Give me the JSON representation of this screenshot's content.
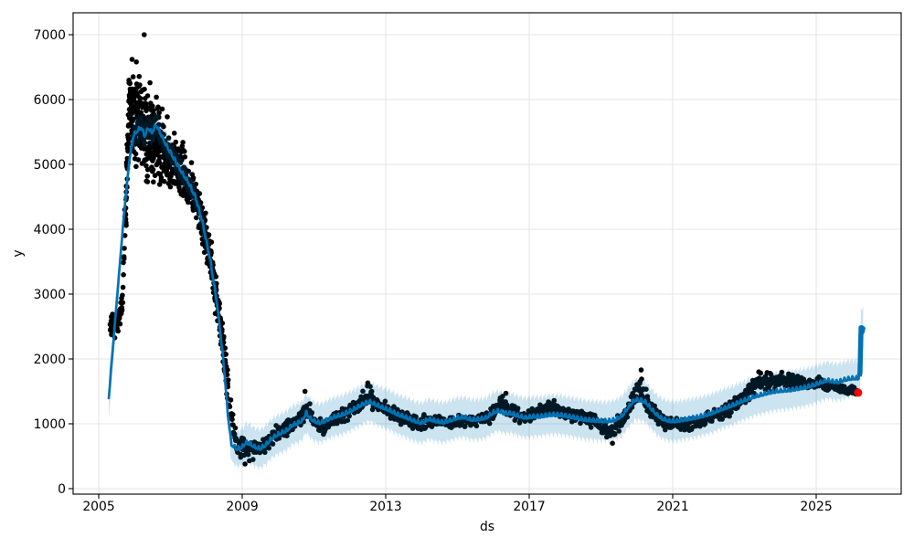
{
  "chart_data": {
    "type": "line",
    "title": "",
    "xlabel": "ds",
    "ylabel": "y",
    "grid": true,
    "legend": "none",
    "x_tick_values": [
      2005,
      2009,
      2013,
      2017,
      2021,
      2025
    ],
    "x_tick_labels": [
      "2005",
      "2009",
      "2013",
      "2017",
      "2021",
      "2025"
    ],
    "y_tick_values": [
      0,
      1000,
      2000,
      3000,
      4000,
      5000,
      6000,
      7000
    ],
    "y_tick_labels": [
      "0",
      "1000",
      "2000",
      "3000",
      "4000",
      "5000",
      "6000",
      "7000"
    ],
    "xlim": [
      2004.29,
      2027.37
    ],
    "ylim": [
      -85,
      7340
    ],
    "colors": {
      "forecast_line": "#0072B2",
      "uncertainty_band": "#0072B2",
      "band_alpha": 0.2,
      "observed_points": "#000000",
      "highlight_point": "#ff0000",
      "grid": "#e5e5e5",
      "spine": "#000000",
      "text": "#000000",
      "background": "#ffffff"
    },
    "series": [
      {
        "name": "observed",
        "kind": "scatter",
        "color": "#000000",
        "backbone": [
          [
            2005.33,
            2500,
            180
          ],
          [
            2005.52,
            2550,
            220
          ],
          [
            2005.65,
            2900,
            350
          ],
          [
            2005.75,
            4200,
            700
          ],
          [
            2005.85,
            5900,
            550
          ],
          [
            2006.0,
            5700,
            700
          ],
          [
            2006.15,
            5600,
            800
          ],
          [
            2006.35,
            5500,
            850
          ],
          [
            2006.6,
            5400,
            800
          ],
          [
            2006.85,
            5200,
            650
          ],
          [
            2007.1,
            5000,
            550
          ],
          [
            2007.4,
            4800,
            500
          ],
          [
            2007.7,
            4500,
            450
          ],
          [
            2007.95,
            4000,
            450
          ],
          [
            2008.2,
            3300,
            400
          ],
          [
            2008.45,
            2300,
            350
          ],
          [
            2008.65,
            1300,
            300
          ],
          [
            2008.85,
            700,
            200
          ],
          [
            2009.05,
            600,
            200
          ],
          [
            2009.25,
            650,
            200
          ],
          [
            2009.5,
            620,
            150
          ],
          [
            2009.8,
            780,
            140
          ],
          [
            2010.1,
            900,
            140
          ],
          [
            2010.4,
            1000,
            140
          ],
          [
            2010.65,
            1080,
            150
          ],
          [
            2010.78,
            1300,
            200
          ],
          [
            2010.95,
            1050,
            130
          ],
          [
            2011.25,
            950,
            130
          ],
          [
            2011.6,
            1080,
            130
          ],
          [
            2011.95,
            1180,
            140
          ],
          [
            2012.25,
            1300,
            150
          ],
          [
            2012.5,
            1450,
            170
          ],
          [
            2012.75,
            1300,
            150
          ],
          [
            2013.1,
            1200,
            140
          ],
          [
            2013.5,
            1100,
            130
          ],
          [
            2013.95,
            990,
            140
          ],
          [
            2014.4,
            1050,
            130
          ],
          [
            2014.9,
            1020,
            120
          ],
          [
            2015.4,
            1060,
            120
          ],
          [
            2015.9,
            1120,
            130
          ],
          [
            2016.2,
            1330,
            140
          ],
          [
            2016.5,
            1200,
            140
          ],
          [
            2016.85,
            1090,
            130
          ],
          [
            2017.2,
            1150,
            130
          ],
          [
            2017.6,
            1270,
            140
          ],
          [
            2018.0,
            1150,
            130
          ],
          [
            2018.45,
            1100,
            130
          ],
          [
            2018.9,
            1010,
            130
          ],
          [
            2019.25,
            860,
            150
          ],
          [
            2019.6,
            1050,
            150
          ],
          [
            2019.9,
            1400,
            220
          ],
          [
            2020.1,
            1550,
            230
          ],
          [
            2020.35,
            1300,
            200
          ],
          [
            2020.65,
            1050,
            150
          ],
          [
            2021.0,
            990,
            130
          ],
          [
            2021.45,
            1000,
            130
          ],
          [
            2021.9,
            1060,
            130
          ],
          [
            2022.3,
            1150,
            140
          ],
          [
            2022.7,
            1270,
            150
          ],
          [
            2023.05,
            1450,
            180
          ],
          [
            2023.35,
            1650,
            160
          ],
          [
            2023.7,
            1650,
            150
          ],
          [
            2024.05,
            1700,
            140
          ],
          [
            2024.4,
            1660,
            130
          ],
          [
            2024.75,
            1590,
            110
          ],
          [
            2025.1,
            1630,
            100
          ],
          [
            2025.45,
            1560,
            90
          ],
          [
            2025.75,
            1520,
            80
          ],
          [
            2026.0,
            1520,
            70
          ],
          [
            2026.15,
            1490,
            50
          ]
        ],
        "outliers": [
          [
            2006.27,
            7000
          ],
          [
            2005.93,
            6620
          ],
          [
            2006.05,
            6580
          ],
          [
            2009.08,
            380
          ],
          [
            2009.2,
            430
          ],
          [
            2009.3,
            450
          ],
          [
            2010.75,
            1500
          ],
          [
            2012.5,
            1630
          ],
          [
            2016.35,
            1470
          ],
          [
            2019.32,
            700
          ],
          [
            2020.12,
            1830
          ],
          [
            2023.4,
            1800
          ],
          [
            2023.45,
            1780
          ]
        ]
      },
      {
        "name": "forecast",
        "kind": "line",
        "color": "#0072B2",
        "points": [
          [
            2005.28,
            1400
          ],
          [
            2005.4,
            2200
          ],
          [
            2005.55,
            3200
          ],
          [
            2005.7,
            4200
          ],
          [
            2005.85,
            5050
          ],
          [
            2005.97,
            5450
          ],
          [
            2006.08,
            5520
          ],
          [
            2006.18,
            5570
          ],
          [
            2006.28,
            5440
          ],
          [
            2006.38,
            5560
          ],
          [
            2006.48,
            5490
          ],
          [
            2006.6,
            5610
          ],
          [
            2006.72,
            5480
          ],
          [
            2006.85,
            5330
          ],
          [
            2007.0,
            5180
          ],
          [
            2007.15,
            5040
          ],
          [
            2007.3,
            4890
          ],
          [
            2007.5,
            4720
          ],
          [
            2007.7,
            4490
          ],
          [
            2007.9,
            4090
          ],
          [
            2008.1,
            3550
          ],
          [
            2008.3,
            2850
          ],
          [
            2008.48,
            1950
          ],
          [
            2008.6,
            1150
          ],
          [
            2008.7,
            680
          ],
          [
            2008.85,
            610
          ],
          [
            2009.0,
            640
          ],
          [
            2009.1,
            710
          ],
          [
            2009.22,
            690
          ],
          [
            2009.35,
            640
          ],
          [
            2009.5,
            615
          ],
          [
            2009.65,
            670
          ],
          [
            2009.8,
            760
          ],
          [
            2009.95,
            820
          ],
          [
            2010.1,
            860
          ],
          [
            2010.25,
            900
          ],
          [
            2010.4,
            980
          ],
          [
            2010.55,
            1010
          ],
          [
            2010.68,
            1050
          ],
          [
            2010.78,
            1170
          ],
          [
            2010.88,
            1090
          ],
          [
            2011.0,
            1040
          ],
          [
            2011.15,
            1010
          ],
          [
            2011.3,
            1040
          ],
          [
            2011.45,
            1080
          ],
          [
            2011.6,
            1110
          ],
          [
            2011.8,
            1140
          ],
          [
            2012.0,
            1190
          ],
          [
            2012.2,
            1250
          ],
          [
            2012.4,
            1310
          ],
          [
            2012.55,
            1340
          ],
          [
            2012.7,
            1300
          ],
          [
            2012.9,
            1250
          ],
          [
            2013.1,
            1210
          ],
          [
            2013.3,
            1150
          ],
          [
            2013.55,
            1100
          ],
          [
            2013.8,
            1040
          ],
          [
            2014.0,
            1010
          ],
          [
            2014.2,
            1070
          ],
          [
            2014.4,
            1040
          ],
          [
            2014.6,
            1020
          ],
          [
            2014.8,
            1050
          ],
          [
            2015.0,
            1090
          ],
          [
            2015.2,
            1100
          ],
          [
            2015.4,
            1060
          ],
          [
            2015.6,
            1070
          ],
          [
            2015.8,
            1090
          ],
          [
            2016.0,
            1170
          ],
          [
            2016.15,
            1200
          ],
          [
            2016.3,
            1160
          ],
          [
            2016.5,
            1160
          ],
          [
            2016.7,
            1120
          ],
          [
            2016.9,
            1090
          ],
          [
            2017.1,
            1110
          ],
          [
            2017.3,
            1110
          ],
          [
            2017.5,
            1130
          ],
          [
            2017.7,
            1140
          ],
          [
            2017.9,
            1130
          ],
          [
            2018.1,
            1110
          ],
          [
            2018.3,
            1090
          ],
          [
            2018.55,
            1060
          ],
          [
            2018.8,
            1050
          ],
          [
            2019.0,
            1040
          ],
          [
            2019.2,
            1040
          ],
          [
            2019.4,
            1060
          ],
          [
            2019.6,
            1130
          ],
          [
            2019.8,
            1280
          ],
          [
            2019.95,
            1370
          ],
          [
            2020.1,
            1360
          ],
          [
            2020.25,
            1330
          ],
          [
            2020.4,
            1230
          ],
          [
            2020.55,
            1140
          ],
          [
            2020.7,
            1080
          ],
          [
            2020.9,
            1040
          ],
          [
            2021.1,
            1040
          ],
          [
            2021.3,
            1060
          ],
          [
            2021.5,
            1080
          ],
          [
            2021.7,
            1100
          ],
          [
            2021.9,
            1130
          ],
          [
            2022.1,
            1160
          ],
          [
            2022.3,
            1210
          ],
          [
            2022.5,
            1250
          ],
          [
            2022.7,
            1290
          ],
          [
            2022.9,
            1340
          ],
          [
            2023.1,
            1380
          ],
          [
            2023.3,
            1420
          ],
          [
            2023.5,
            1450
          ],
          [
            2023.7,
            1480
          ],
          [
            2023.9,
            1500
          ],
          [
            2024.1,
            1510
          ],
          [
            2024.3,
            1520
          ],
          [
            2024.5,
            1540
          ],
          [
            2024.7,
            1560
          ],
          [
            2024.9,
            1590
          ],
          [
            2025.1,
            1630
          ],
          [
            2025.3,
            1670
          ],
          [
            2025.45,
            1650
          ],
          [
            2025.6,
            1640
          ],
          [
            2025.75,
            1670
          ],
          [
            2025.9,
            1690
          ],
          [
            2026.05,
            1700
          ],
          [
            2026.18,
            1700
          ],
          [
            2026.22,
            1780
          ],
          [
            2026.25,
            2480
          ],
          [
            2026.28,
            2420
          ],
          [
            2026.31,
            2500
          ]
        ]
      },
      {
        "name": "uncertainty",
        "kind": "band",
        "color": "#0072B2",
        "alpha": 0.2,
        "halfwidth": [
          [
            2005.28,
            330
          ],
          [
            2005.6,
            260
          ],
          [
            2005.95,
            210
          ],
          [
            2006.4,
            210
          ],
          [
            2007.0,
            195
          ],
          [
            2007.6,
            195
          ],
          [
            2008.2,
            215
          ],
          [
            2008.7,
            260
          ],
          [
            2009.2,
            295
          ],
          [
            2010.0,
            300
          ],
          [
            2011.0,
            300
          ],
          [
            2012.0,
            300
          ],
          [
            2013.0,
            305
          ],
          [
            2014.0,
            310
          ],
          [
            2015.0,
            310
          ],
          [
            2016.0,
            310
          ],
          [
            2017.0,
            305
          ],
          [
            2018.0,
            300
          ],
          [
            2019.0,
            300
          ],
          [
            2020.0,
            310
          ],
          [
            2021.0,
            305
          ],
          [
            2022.0,
            300
          ],
          [
            2023.0,
            295
          ],
          [
            2024.0,
            290
          ],
          [
            2025.0,
            285
          ],
          [
            2025.8,
            280
          ],
          [
            2026.18,
            270
          ],
          [
            2026.23,
            330
          ],
          [
            2026.31,
            320
          ]
        ]
      },
      {
        "name": "last-observation",
        "kind": "scatter",
        "color": "#ff0000",
        "points": [
          [
            2026.17,
            1480
          ]
        ]
      }
    ]
  }
}
